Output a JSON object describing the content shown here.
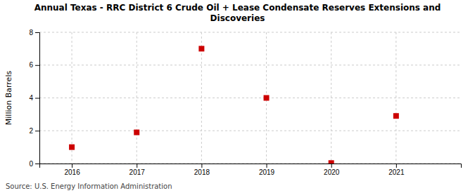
{
  "chart_data": {
    "type": "scatter",
    "title": "Annual Texas - RRC District 6 Crude Oil + Lease Condensate Reserves Extensions and\nDiscoveries",
    "ylabel": "Million Barrels",
    "annotations": [
      "Source: U.S. Energy Information Administration"
    ],
    "x": [
      2016,
      2017,
      2018,
      2019,
      2020,
      2021
    ],
    "values": [
      1.0,
      1.9,
      7.0,
      4.0,
      0.03,
      2.9
    ],
    "color": "#cc0000",
    "marker": "square",
    "xlim": [
      2015.5,
      2022.0
    ],
    "ylim": [
      0,
      8
    ],
    "xticks": [
      2016,
      2017,
      2018,
      2019,
      2020,
      2021
    ],
    "yticks": [
      0,
      2,
      4,
      6,
      8
    ],
    "grid": true
  }
}
